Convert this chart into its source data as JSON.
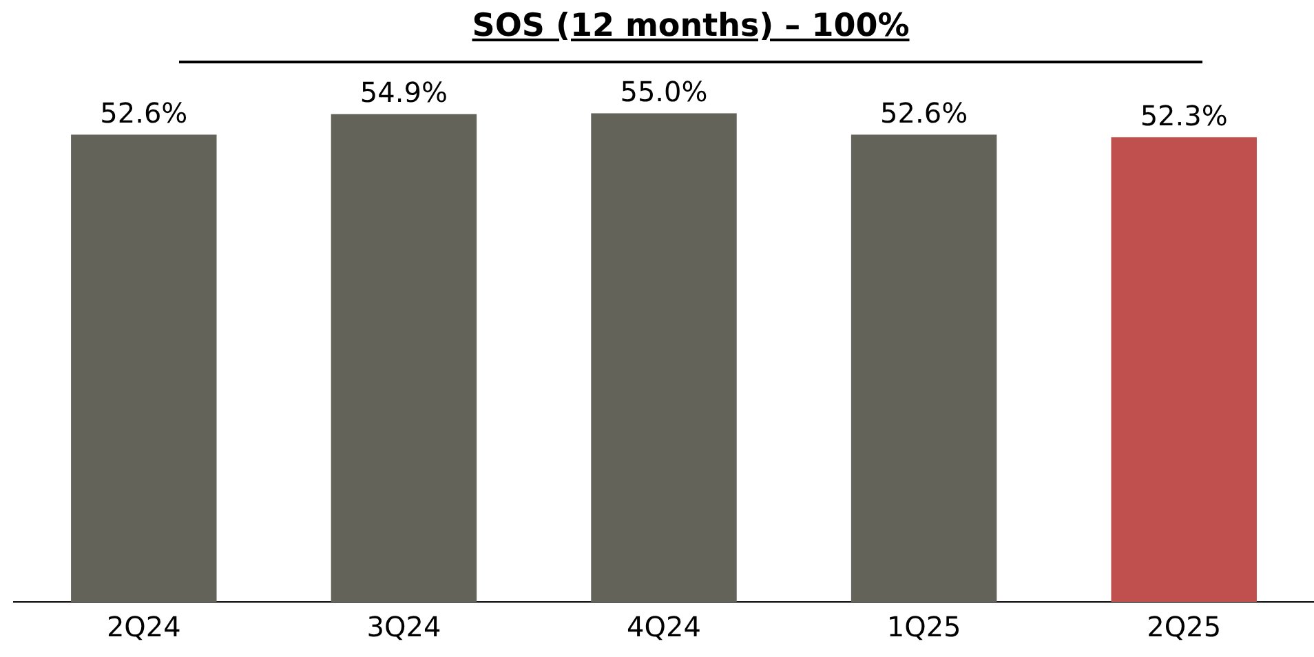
{
  "chart_data": {
    "type": "bar",
    "title": "SOS (12 months) – 100%",
    "categories": [
      "2Q24",
      "3Q24",
      "4Q24",
      "1Q25",
      "2Q25"
    ],
    "values": [
      52.6,
      54.9,
      55.0,
      52.6,
      52.3
    ],
    "colors": [
      "#64635a",
      "#64635a",
      "#64635a",
      "#64635a",
      "#c0504d"
    ],
    "value_labels": [
      "52.6%",
      "54.9%",
      "55.0%",
      "52.6%",
      "52.3%"
    ],
    "grid": false,
    "legend": false
  }
}
